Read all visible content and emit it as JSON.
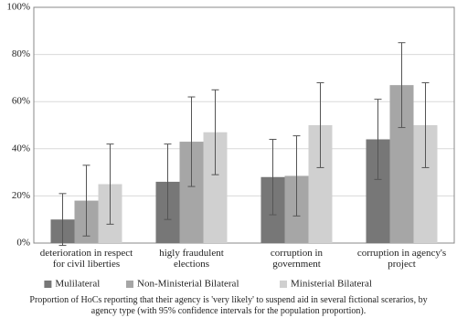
{
  "chart_data": {
    "type": "bar",
    "categories": [
      "deterioration in respect for civil liberties",
      "higly fraudulent elections",
      "corruption in government",
      "corruption in agency's project"
    ],
    "series": [
      {
        "name": "Mulilateral",
        "color": "#777777",
        "values": [
          10,
          26,
          28,
          44
        ],
        "errors": [
          11,
          16,
          16,
          17
        ]
      },
      {
        "name": "Non-Ministerial Bilateral",
        "color": "#a6a6a6",
        "values": [
          18,
          43,
          28.5,
          67
        ],
        "errors": [
          15,
          19,
          17,
          18
        ]
      },
      {
        "name": "Ministerial Bilateral",
        "color": "#d0d0d0",
        "values": [
          25,
          47,
          50,
          50
        ],
        "errors": [
          17,
          18,
          18,
          18
        ]
      }
    ],
    "ylim": [
      0,
      100
    ],
    "yticks": [
      {
        "value": 0,
        "label": "0%"
      },
      {
        "value": 20,
        "label": "20%"
      },
      {
        "value": 40,
        "label": "40%"
      },
      {
        "value": 60,
        "label": "60%"
      },
      {
        "value": 80,
        "label": "80%"
      },
      {
        "value": 100,
        "label": "100%"
      }
    ],
    "grid": true,
    "legend": "bottom",
    "caption": "Proportion of HoCs reporting that their agency is 'very likely' to suspend aid in several fictional scerarios, by agency type (with 95% confidence intervals for the population proportion)."
  }
}
